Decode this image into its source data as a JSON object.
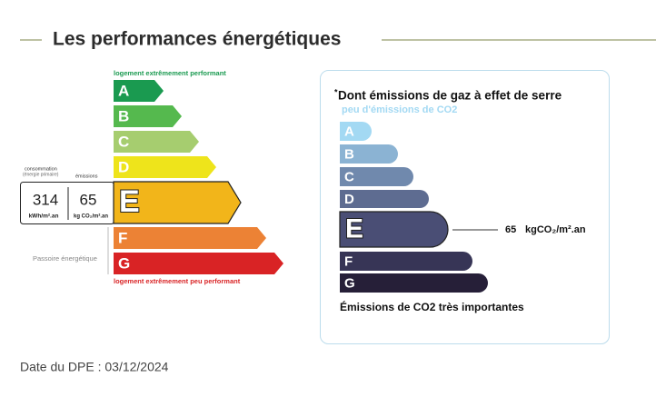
{
  "header": {
    "title": "Les performances énergétiques"
  },
  "dpe": {
    "top_label": "logement extrêmement performant",
    "classes": [
      "A",
      "B",
      "C",
      "D",
      "E",
      "F",
      "G"
    ],
    "bottom_label": "logement extrêmement peu performant",
    "consumption_label": "consommation",
    "consumption_sub": "(énergie primaire)",
    "emissions_label": "émissions",
    "consumption_value": 314,
    "consumption_unit": "kWh/m².an",
    "emissions_value": 65,
    "emissions_unit": "kg CO₂/m².an",
    "passoire_label": "Passoire énergétique"
  },
  "ges": {
    "marker": "*",
    "title": "Dont émissions de gaz à effet de serre",
    "top_label": "peu d'émissions de CO2",
    "classes": [
      "A",
      "B",
      "C",
      "D",
      "E",
      "F",
      "G"
    ],
    "value": 65,
    "unit": "kgCO₂/m².an",
    "bottom_label": "Émissions de CO2 très importantes"
  },
  "footer": {
    "date": "Date du DPE : 03/12/2024"
  }
}
